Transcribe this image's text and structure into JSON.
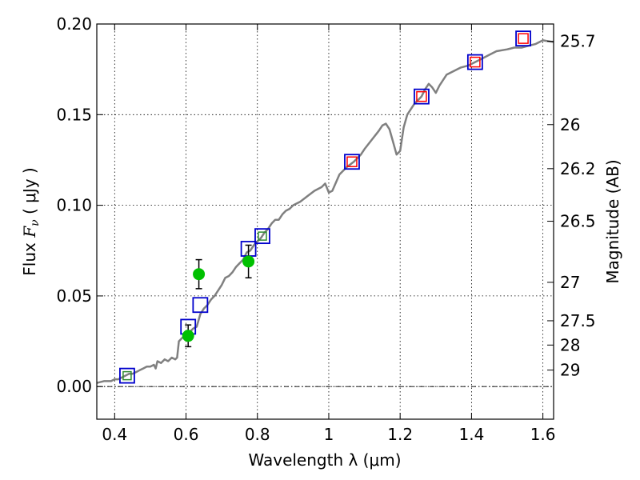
{
  "chart_data": {
    "type": "scatter",
    "title": "",
    "xlabel": "Wavelength  λ (μm)",
    "ylabel_prefix": "Flux  ",
    "ylabel_symbol": "F",
    "ylabel_sub": "ν",
    "ylabel_suffix": "  ( μJy )",
    "y2label": "Magnitude (AB)",
    "xlim": [
      0.35,
      1.63
    ],
    "ylim": [
      -0.018,
      0.2
    ],
    "grid": true,
    "zero_line": true,
    "xticks": [
      0.4,
      0.6,
      0.8,
      1.0,
      1.2,
      1.4,
      1.6
    ],
    "xtick_labels": [
      "0.4",
      "0.6",
      "0.8",
      "1",
      "1.2",
      "1.4",
      "1.6"
    ],
    "yticks": [
      0.0,
      0.05,
      0.1,
      0.15,
      0.2
    ],
    "ytick_labels": [
      "0.00",
      "0.05",
      "0.10",
      "0.15",
      "0.20"
    ],
    "mag_ticks": [
      {
        "label": "25.7",
        "flux": 0.1905
      },
      {
        "label": "26",
        "flux": 0.1445
      },
      {
        "label": "26.2",
        "flux": 0.1202
      },
      {
        "label": "26.5",
        "flux": 0.0912
      },
      {
        "label": "27",
        "flux": 0.0575
      },
      {
        "label": "27.5",
        "flux": 0.0363
      },
      {
        "label": "28",
        "flux": 0.0229
      },
      {
        "label": "29",
        "flux": 0.0091
      }
    ],
    "colors": {
      "model_sed": "#808080",
      "observed": "#00c000",
      "model_phot": "#0000cc",
      "inner_red": "#ff0000",
      "inner_green": "#2e8b2e",
      "grid": "#000000"
    },
    "series": [
      {
        "type": "line",
        "points": [
          [
            0.35,
            0.002
          ],
          [
            0.37,
            0.003
          ],
          [
            0.39,
            0.003
          ],
          [
            0.4,
            0.004
          ],
          [
            0.41,
            0.004
          ],
          [
            0.42,
            0.005
          ],
          [
            0.43,
            0.006
          ],
          [
            0.44,
            0.007
          ],
          [
            0.45,
            0.007
          ],
          [
            0.46,
            0.008
          ],
          [
            0.47,
            0.009
          ],
          [
            0.48,
            0.01
          ],
          [
            0.49,
            0.011
          ],
          [
            0.5,
            0.011
          ],
          [
            0.51,
            0.012
          ],
          [
            0.515,
            0.01
          ],
          [
            0.52,
            0.014
          ],
          [
            0.53,
            0.013
          ],
          [
            0.54,
            0.015
          ],
          [
            0.55,
            0.014
          ],
          [
            0.56,
            0.016
          ],
          [
            0.57,
            0.015
          ],
          [
            0.575,
            0.016
          ],
          [
            0.58,
            0.025
          ],
          [
            0.59,
            0.027
          ],
          [
            0.6,
            0.028
          ],
          [
            0.61,
            0.03
          ],
          [
            0.62,
            0.032
          ],
          [
            0.63,
            0.033
          ],
          [
            0.64,
            0.04
          ],
          [
            0.65,
            0.043
          ],
          [
            0.66,
            0.045
          ],
          [
            0.67,
            0.048
          ],
          [
            0.68,
            0.05
          ],
          [
            0.69,
            0.053
          ],
          [
            0.7,
            0.056
          ],
          [
            0.71,
            0.06
          ],
          [
            0.72,
            0.061
          ],
          [
            0.73,
            0.063
          ],
          [
            0.74,
            0.066
          ],
          [
            0.75,
            0.068
          ],
          [
            0.76,
            0.07
          ],
          [
            0.77,
            0.074
          ],
          [
            0.78,
            0.075
          ],
          [
            0.79,
            0.078
          ],
          [
            0.8,
            0.08
          ],
          [
            0.81,
            0.082
          ],
          [
            0.82,
            0.085
          ],
          [
            0.83,
            0.087
          ],
          [
            0.84,
            0.09
          ],
          [
            0.85,
            0.092
          ],
          [
            0.86,
            0.092
          ],
          [
            0.87,
            0.095
          ],
          [
            0.88,
            0.097
          ],
          [
            0.89,
            0.098
          ],
          [
            0.9,
            0.1
          ],
          [
            0.92,
            0.102
          ],
          [
            0.94,
            0.105
          ],
          [
            0.96,
            0.108
          ],
          [
            0.98,
            0.11
          ],
          [
            0.99,
            0.112
          ],
          [
            1.0,
            0.107
          ],
          [
            1.01,
            0.108
          ],
          [
            1.03,
            0.117
          ],
          [
            1.05,
            0.121
          ],
          [
            1.07,
            0.124
          ],
          [
            1.09,
            0.128
          ],
          [
            1.1,
            0.131
          ],
          [
            1.12,
            0.136
          ],
          [
            1.14,
            0.141
          ],
          [
            1.15,
            0.144
          ],
          [
            1.16,
            0.145
          ],
          [
            1.17,
            0.142
          ],
          [
            1.18,
            0.135
          ],
          [
            1.19,
            0.128
          ],
          [
            1.2,
            0.13
          ],
          [
            1.21,
            0.143
          ],
          [
            1.22,
            0.15
          ],
          [
            1.24,
            0.156
          ],
          [
            1.26,
            0.16
          ],
          [
            1.27,
            0.164
          ],
          [
            1.28,
            0.167
          ],
          [
            1.29,
            0.165
          ],
          [
            1.3,
            0.162
          ],
          [
            1.31,
            0.166
          ],
          [
            1.33,
            0.172
          ],
          [
            1.35,
            0.174
          ],
          [
            1.37,
            0.176
          ],
          [
            1.39,
            0.177
          ],
          [
            1.41,
            0.179
          ],
          [
            1.43,
            0.181
          ],
          [
            1.45,
            0.183
          ],
          [
            1.47,
            0.185
          ],
          [
            1.5,
            0.186
          ],
          [
            1.52,
            0.187
          ],
          [
            1.54,
            0.187
          ],
          [
            1.56,
            0.188
          ],
          [
            1.58,
            0.189
          ],
          [
            1.6,
            0.191
          ],
          [
            1.63,
            0.19
          ]
        ]
      },
      {
        "type": "model_photometry",
        "points": [
          {
            "x": 0.435,
            "y": 0.006,
            "inner": "green"
          },
          {
            "x": 0.606,
            "y": 0.033,
            "inner": "none"
          },
          {
            "x": 0.64,
            "y": 0.045,
            "inner": "none"
          },
          {
            "x": 0.775,
            "y": 0.076,
            "inner": "none"
          },
          {
            "x": 0.814,
            "y": 0.083,
            "inner": "green"
          },
          {
            "x": 1.065,
            "y": 0.124,
            "inner": "red"
          },
          {
            "x": 1.26,
            "y": 0.16,
            "inner": "red"
          },
          {
            "x": 1.41,
            "y": 0.179,
            "inner": "red"
          },
          {
            "x": 1.545,
            "y": 0.192,
            "inner": "red"
          }
        ]
      },
      {
        "type": "observed",
        "points": [
          {
            "x": 0.606,
            "y": 0.028,
            "err": 0.006
          },
          {
            "x": 0.636,
            "y": 0.062,
            "err": 0.008
          },
          {
            "x": 0.775,
            "y": 0.069,
            "err": 0.009
          }
        ]
      }
    ]
  }
}
